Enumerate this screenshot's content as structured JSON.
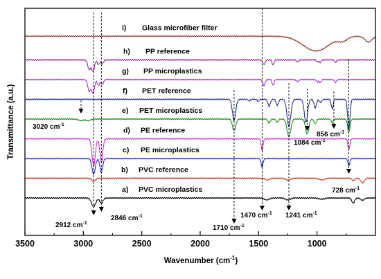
{
  "chart_data": {
    "type": "line",
    "xlabel": "Wavenumber (cm",
    "xlabel_sup": "-1",
    "xlabel_close": ")",
    "ylabel": "Transmittance (a.u.)",
    "xlim": [
      3500,
      500
    ],
    "x_reversed": true,
    "xticks": [
      3500,
      3000,
      2500,
      2000,
      1500,
      1000
    ],
    "series": [
      {
        "label": "a)",
        "name": "PVC microplastics",
        "color": "#000000",
        "offset": 0.0,
        "bands": [
          {
            "center": 2912,
            "depth": 0.22,
            "width": 18
          },
          {
            "center": 2846,
            "depth": 0.13,
            "width": 14
          },
          {
            "center": 1430,
            "depth": 0.05,
            "width": 20
          },
          {
            "center": 1250,
            "depth": 0.05,
            "width": 20
          },
          {
            "center": 960,
            "depth": 0.03,
            "width": 25
          },
          {
            "center": 690,
            "depth": 0.13,
            "width": 12
          },
          {
            "center": 610,
            "depth": 0.06,
            "width": 15
          }
        ]
      },
      {
        "label": "b)",
        "name": "PVC reference",
        "color": "#c0392b",
        "offset": 1.0,
        "bands": [
          {
            "center": 2912,
            "depth": 0.08,
            "width": 15
          },
          {
            "center": 1425,
            "depth": 0.05,
            "width": 15
          },
          {
            "center": 1250,
            "depth": 0.05,
            "width": 20
          },
          {
            "center": 960,
            "depth": 0.04,
            "width": 25
          },
          {
            "center": 690,
            "depth": 0.06,
            "width": 12
          },
          {
            "center": 610,
            "depth": 0.12,
            "width": 15
          }
        ]
      },
      {
        "label": "c)",
        "name": "PE microplastics",
        "color": "#1f2fc8",
        "offset": 2.0,
        "bands": [
          {
            "center": 2912,
            "depth": 0.4,
            "width": 14
          },
          {
            "center": 2846,
            "depth": 0.35,
            "width": 12
          },
          {
            "center": 1470,
            "depth": 0.22,
            "width": 8
          },
          {
            "center": 728,
            "depth": 0.18,
            "width": 8
          }
        ]
      },
      {
        "label": "d)",
        "name": "PE reference",
        "color": "#cc2fcc",
        "offset": 3.0,
        "bands": [
          {
            "center": 2912,
            "depth": 0.7,
            "width": 14
          },
          {
            "center": 2846,
            "depth": 0.6,
            "width": 12
          },
          {
            "center": 1470,
            "depth": 0.3,
            "width": 8
          },
          {
            "center": 728,
            "depth": 0.28,
            "width": 8
          }
        ]
      },
      {
        "label": "e)",
        "name": "PET microplastics",
        "color": "#1a8c1a",
        "offset": 4.0,
        "bands": [
          {
            "center": 3020,
            "depth": 0.04,
            "width": 20
          },
          {
            "center": 2960,
            "depth": 0.04,
            "width": 20
          },
          {
            "center": 1710,
            "depth": 0.3,
            "width": 14
          },
          {
            "center": 1410,
            "depth": 0.1,
            "width": 10
          },
          {
            "center": 1340,
            "depth": 0.08,
            "width": 10
          },
          {
            "center": 1241,
            "depth": 0.45,
            "width": 16
          },
          {
            "center": 1084,
            "depth": 0.38,
            "width": 14
          },
          {
            "center": 1015,
            "depth": 0.12,
            "width": 10
          },
          {
            "center": 870,
            "depth": 0.1,
            "width": 8
          },
          {
            "center": 728,
            "depth": 0.35,
            "width": 10
          }
        ]
      },
      {
        "label": "f)",
        "name": "PET reference",
        "color": "#1f2f8c",
        "offset": 5.0,
        "bands": [
          {
            "center": 1710,
            "depth": 0.55,
            "width": 14
          },
          {
            "center": 1580,
            "depth": 0.04,
            "width": 8
          },
          {
            "center": 1505,
            "depth": 0.05,
            "width": 8
          },
          {
            "center": 1410,
            "depth": 0.18,
            "width": 10
          },
          {
            "center": 1340,
            "depth": 0.15,
            "width": 10
          },
          {
            "center": 1241,
            "depth": 0.7,
            "width": 16
          },
          {
            "center": 1095,
            "depth": 0.6,
            "width": 14
          },
          {
            "center": 1015,
            "depth": 0.22,
            "width": 10
          },
          {
            "center": 970,
            "depth": 0.08,
            "width": 10
          },
          {
            "center": 870,
            "depth": 0.25,
            "width": 8
          },
          {
            "center": 728,
            "depth": 0.75,
            "width": 10
          }
        ]
      },
      {
        "label": "g)",
        "name": "PP microplastics",
        "color": "#9b30d9",
        "offset": 6.0,
        "bands": [
          {
            "center": 2950,
            "depth": 0.3,
            "width": 12
          },
          {
            "center": 2917,
            "depth": 0.35,
            "width": 12
          },
          {
            "center": 2870,
            "depth": 0.15,
            "width": 10
          },
          {
            "center": 2838,
            "depth": 0.12,
            "width": 10
          },
          {
            "center": 1455,
            "depth": 0.15,
            "width": 10
          },
          {
            "center": 1376,
            "depth": 0.15,
            "width": 8
          },
          {
            "center": 1167,
            "depth": 0.05,
            "width": 10
          },
          {
            "center": 997,
            "depth": 0.06,
            "width": 8
          },
          {
            "center": 973,
            "depth": 0.08,
            "width": 8
          },
          {
            "center": 841,
            "depth": 0.07,
            "width": 8
          }
        ]
      },
      {
        "label": "h)",
        "name": "PP reference",
        "color": "#a020a0",
        "offset": 7.0,
        "bands": [
          {
            "center": 2950,
            "depth": 0.25,
            "width": 12
          },
          {
            "center": 2917,
            "depth": 0.3,
            "width": 12
          },
          {
            "center": 2870,
            "depth": 0.12,
            "width": 10
          },
          {
            "center": 2838,
            "depth": 0.1,
            "width": 10
          },
          {
            "center": 1455,
            "depth": 0.12,
            "width": 10
          },
          {
            "center": 1376,
            "depth": 0.13,
            "width": 8
          },
          {
            "center": 1167,
            "depth": 0.05,
            "width": 10
          },
          {
            "center": 997,
            "depth": 0.05,
            "width": 8
          },
          {
            "center": 973,
            "depth": 0.07,
            "width": 8
          },
          {
            "center": 841,
            "depth": 0.06,
            "width": 8
          }
        ]
      },
      {
        "label": "i)",
        "name": "Glass microfiber filter",
        "color": "#8b3a2a",
        "offset": 8.2,
        "bands": [
          {
            "center": 1010,
            "depth": 0.38,
            "width": 110
          },
          {
            "center": 780,
            "depth": 0.1,
            "width": 40
          },
          {
            "center": 560,
            "depth": 0.15,
            "width": 30
          }
        ]
      }
    ],
    "annotations": [
      {
        "text": "3020 cm",
        "sup": "-1",
        "x": 3020
      },
      {
        "text": "2912 cm",
        "sup": "-1",
        "x": 2912
      },
      {
        "text": "2846 cm",
        "sup": "-1",
        "x": 2846
      },
      {
        "text": "1710 cm",
        "sup": "-1",
        "x": 1710
      },
      {
        "text": "1470 cm",
        "sup": "-1",
        "x": 1470
      },
      {
        "text": "1241 cm",
        "sup": "-1",
        "x": 1241
      },
      {
        "text": "1084 cm",
        "sup": "-1",
        "x": 1084
      },
      {
        "text": "856 cm",
        "sup": "-1",
        "x": 856
      },
      {
        "text": "728 cm",
        "sup": "-1",
        "x": 728
      }
    ],
    "grid": false,
    "legend": "inline labels per trace"
  }
}
